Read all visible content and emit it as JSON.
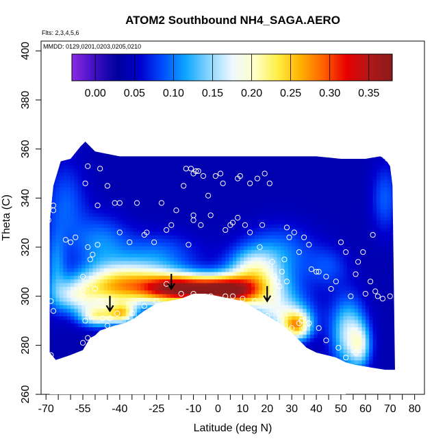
{
  "chart_data": {
    "type": "heatmap",
    "title": "ATOM2 Southbound NH4_SAGA.AERO",
    "flights_label": "Flts: 2,3,4,5,6",
    "dates_label": "MMDD: 0129,0201,0203,0205,0210",
    "xlabel": "Latitude (deg N)",
    "ylabel": "Theta (C)",
    "xlim": [
      -72,
      84
    ],
    "ylim": [
      260,
      404
    ],
    "x_ticks": [
      -70,
      -55,
      -40,
      -25,
      -10,
      0,
      10,
      20,
      30,
      40,
      50,
      60,
      70,
      80
    ],
    "x_tick_labels": [
      "-70",
      "-55",
      "-40",
      "-25",
      "-10",
      "0",
      "10",
      "20",
      "30",
      "40",
      "50",
      "60",
      "70",
      "80"
    ],
    "x_minor_ticks": [
      -65,
      -60,
      -50,
      -45,
      -35,
      -30,
      -20,
      -15,
      -5,
      5,
      15,
      25,
      35,
      45,
      55,
      65,
      75
    ],
    "y_ticks": [
      260,
      280,
      300,
      320,
      340,
      360,
      380,
      400
    ],
    "y_tick_labels": [
      "260",
      "280",
      "300",
      "320",
      "340",
      "360",
      "380",
      "400"
    ],
    "colorbar": {
      "min": -0.03,
      "max": 0.38,
      "ticks": [
        0.0,
        0.05,
        0.1,
        0.15,
        0.2,
        0.25,
        0.3,
        0.35
      ],
      "tick_labels": [
        "0.00",
        "0.05",
        "0.10",
        "0.15",
        "0.20",
        "0.25",
        "0.30",
        "0.35"
      ],
      "colors": [
        "#8a2be2",
        "#3d0fc4",
        "#00009a",
        "#0000d0",
        "#0050ff",
        "#0fa8ff",
        "#8ad5ff",
        "#eef8ff",
        "#ffffc8",
        "#ffee44",
        "#ffb000",
        "#ff6000",
        "#e80000",
        "#b01818",
        "#8b1a1a"
      ]
    },
    "domain_top": [
      [
        -68.5,
        330
      ],
      [
        -67,
        345
      ],
      [
        -64,
        355
      ],
      [
        -60,
        356
      ],
      [
        -56,
        361
      ],
      [
        -54,
        363
      ],
      [
        -50,
        359
      ],
      [
        -45,
        358
      ],
      [
        -40,
        357
      ],
      [
        -30,
        357
      ],
      [
        -20,
        357
      ],
      [
        -10,
        357
      ],
      [
        0,
        357
      ],
      [
        10,
        357
      ],
      [
        20,
        357
      ],
      [
        30,
        357
      ],
      [
        40,
        357
      ],
      [
        50,
        356
      ],
      [
        60,
        356
      ],
      [
        66,
        357
      ],
      [
        68,
        356
      ],
      [
        70,
        353
      ],
      [
        71,
        345
      ],
      [
        72,
        270
      ]
    ],
    "domain_bottom": [
      [
        -68.5,
        277
      ],
      [
        -66,
        274
      ],
      [
        -60,
        276
      ],
      [
        -55,
        278
      ],
      [
        -52,
        283
      ],
      [
        -50,
        284
      ],
      [
        -48,
        286
      ],
      [
        -45,
        287
      ],
      [
        -42,
        288
      ],
      [
        -38,
        289
      ],
      [
        -34,
        291
      ],
      [
        -30,
        294
      ],
      [
        -25,
        297
      ],
      [
        -20,
        298
      ],
      [
        -15,
        299
      ],
      [
        -10,
        301
      ],
      [
        -5,
        301
      ],
      [
        0,
        300
      ],
      [
        5,
        299
      ],
      [
        10,
        298
      ],
      [
        15,
        295
      ],
      [
        20,
        292
      ],
      [
        25,
        289
      ],
      [
        30,
        285
      ],
      [
        33,
        282
      ],
      [
        36,
        279
      ],
      [
        40,
        277
      ],
      [
        44,
        276
      ],
      [
        48,
        275
      ],
      [
        52,
        273
      ],
      [
        56,
        272
      ],
      [
        62,
        271
      ],
      [
        68,
        270
      ],
      [
        72,
        270
      ]
    ],
    "surface_fill_top": [
      [
        -68.5,
        277
      ],
      [
        -66,
        274
      ],
      [
        -60,
        276
      ],
      [
        -55,
        278
      ],
      [
        -52,
        283
      ],
      [
        -50,
        284
      ],
      [
        -48,
        286
      ],
      [
        -45,
        287
      ],
      [
        -42,
        288
      ],
      [
        -38,
        289
      ],
      [
        -34,
        291
      ],
      [
        -30,
        294
      ],
      [
        -25,
        297
      ],
      [
        -20,
        298
      ],
      [
        -15,
        299
      ],
      [
        -10,
        301
      ],
      [
        -5,
        301
      ],
      [
        0,
        300
      ],
      [
        5,
        299
      ],
      [
        10,
        298
      ],
      [
        15,
        295
      ],
      [
        20,
        292
      ],
      [
        25,
        289
      ],
      [
        30,
        285
      ],
      [
        33,
        282
      ],
      [
        36,
        279
      ],
      [
        40,
        277
      ],
      [
        44,
        276
      ],
      [
        48,
        275
      ],
      [
        52,
        273
      ]
    ],
    "field_blobs": [
      {
        "x": -62,
        "y": 338,
        "sx": 6,
        "sy": 12,
        "v": 0.09
      },
      {
        "x": -48,
        "y": 322,
        "sx": 8,
        "sy": 8,
        "v": 0.1
      },
      {
        "x": -25,
        "y": 318,
        "sx": 12,
        "sy": 6,
        "v": 0.09
      },
      {
        "x": 25,
        "y": 318,
        "sx": 10,
        "sy": 8,
        "v": 0.1
      },
      {
        "x": 14,
        "y": 312,
        "sx": 7,
        "sy": 6,
        "v": 0.13
      },
      {
        "x": -58,
        "y": 300,
        "sx": 7,
        "sy": 5,
        "v": 0.14
      },
      {
        "x": -44,
        "y": 304,
        "sx": 10,
        "sy": 6,
        "v": 0.17
      },
      {
        "x": -30,
        "y": 305,
        "sx": 12,
        "sy": 6,
        "v": 0.18
      },
      {
        "x": -18,
        "y": 303,
        "sx": 9,
        "sy": 4,
        "v": 0.22
      },
      {
        "x": -5,
        "y": 303,
        "sx": 10,
        "sy": 4,
        "v": 0.23
      },
      {
        "x": 5,
        "y": 302,
        "sx": 8,
        "sy": 4,
        "v": 0.22
      },
      {
        "x": 16,
        "y": 304,
        "sx": 10,
        "sy": 6,
        "v": 0.15
      },
      {
        "x": -49,
        "y": 292,
        "sx": 5,
        "sy": 3,
        "v": 0.18
      },
      {
        "x": -39,
        "y": 293,
        "sx": 4,
        "sy": 3,
        "v": 0.2
      },
      {
        "x": 25,
        "y": 293,
        "sx": 9,
        "sy": 6,
        "v": 0.15
      },
      {
        "x": 32,
        "y": 288,
        "sx": 4,
        "sy": 4,
        "v": 0.22
      },
      {
        "x": 53,
        "y": 285,
        "sx": 5,
        "sy": 10,
        "v": 0.16
      },
      {
        "x": 58,
        "y": 280,
        "sx": 3,
        "sy": 6,
        "v": 0.13
      },
      {
        "x": 45,
        "y": 312,
        "sx": 6,
        "sy": 6,
        "v": 0.08
      },
      {
        "x": 68,
        "y": 340,
        "sx": 4,
        "sy": 10,
        "v": 0.09
      },
      {
        "x": -66,
        "y": 312,
        "sx": 3,
        "sy": 10,
        "v": 0.1
      }
    ],
    "field_base": 0.04,
    "obs_points": [
      [
        -69,
        331
      ],
      [
        -67,
        337
      ],
      [
        -67,
        335
      ],
      [
        -68,
        298
      ],
      [
        -67,
        294
      ],
      [
        -68,
        276
      ],
      [
        -62,
        323
      ],
      [
        -60,
        322
      ],
      [
        -58,
        324
      ],
      [
        -55,
        300
      ],
      [
        -55,
        303
      ],
      [
        -55,
        308
      ],
      [
        -53,
        320
      ],
      [
        -52,
        315
      ],
      [
        -51,
        317
      ],
      [
        -49,
        321
      ],
      [
        -50,
        303
      ],
      [
        -48,
        298
      ],
      [
        -47,
        291
      ],
      [
        -45,
        288
      ],
      [
        -54,
        290
      ],
      [
        -55,
        281
      ],
      [
        -53,
        283
      ],
      [
        -54,
        346
      ],
      [
        -53,
        353
      ],
      [
        -48,
        352
      ],
      [
        -49,
        337
      ],
      [
        -45,
        345
      ],
      [
        -42,
        338
      ],
      [
        -40,
        338
      ],
      [
        -40,
        326
      ],
      [
        -36,
        322
      ],
      [
        -33,
        338
      ],
      [
        -29,
        326
      ],
      [
        -26,
        322
      ],
      [
        -23,
        338
      ],
      [
        -21,
        327
      ],
      [
        -19,
        329
      ],
      [
        -17,
        335
      ],
      [
        -14,
        345
      ],
      [
        -13,
        352
      ],
      [
        -11,
        352
      ],
      [
        -10,
        350
      ],
      [
        -9,
        351
      ],
      [
        -8,
        351
      ],
      [
        -10,
        333
      ],
      [
        -10,
        331
      ],
      [
        -7,
        329
      ],
      [
        -6,
        349
      ],
      [
        -3,
        333
      ],
      [
        -1,
        349
      ],
      [
        1,
        350
      ],
      [
        2,
        346
      ],
      [
        3,
        327
      ],
      [
        5,
        329
      ],
      [
        6,
        330
      ],
      [
        8,
        348
      ],
      [
        9,
        349
      ],
      [
        11,
        329
      ],
      [
        13,
        326
      ],
      [
        13,
        346
      ],
      [
        16,
        348
      ],
      [
        17,
        320
      ],
      [
        18,
        329
      ],
      [
        19,
        350
      ],
      [
        21,
        346
      ],
      [
        22,
        314
      ],
      [
        23,
        308
      ],
      [
        24,
        306
      ],
      [
        25,
        304
      ],
      [
        26,
        310
      ],
      [
        27,
        315
      ],
      [
        28,
        328
      ],
      [
        29,
        324
      ],
      [
        31,
        326
      ],
      [
        33,
        318
      ],
      [
        35,
        324
      ],
      [
        37,
        321
      ],
      [
        38,
        311
      ],
      [
        40,
        310
      ],
      [
        41,
        310
      ],
      [
        44,
        308
      ],
      [
        46,
        303
      ],
      [
        48,
        306
      ],
      [
        50,
        322
      ],
      [
        52,
        318
      ],
      [
        54,
        300
      ],
      [
        56,
        309
      ],
      [
        57,
        314
      ],
      [
        60,
        301
      ],
      [
        62,
        306
      ],
      [
        64,
        302
      ],
      [
        65,
        300
      ],
      [
        67,
        299
      ],
      [
        68,
        357
      ],
      [
        69,
        356
      ],
      [
        70,
        300
      ],
      [
        52,
        275
      ],
      [
        56,
        277
      ],
      [
        49,
        279
      ],
      [
        44,
        282
      ],
      [
        41,
        287
      ],
      [
        37,
        289
      ],
      [
        35,
        287
      ],
      [
        33,
        289
      ],
      [
        30,
        287
      ],
      [
        25,
        293
      ],
      [
        20,
        292
      ],
      [
        15,
        298
      ],
      [
        10,
        299
      ],
      [
        6,
        300
      ],
      [
        3,
        300
      ],
      [
        -3,
        300
      ],
      [
        -10,
        301
      ],
      [
        -15,
        301
      ],
      [
        -25,
        298
      ],
      [
        -30,
        296
      ],
      [
        -35,
        293
      ],
      [
        -41,
        293
      ],
      [
        -44,
        291
      ],
      [
        -30,
        325
      ],
      [
        -4,
        341
      ],
      [
        34,
        290
      ],
      [
        28,
        306
      ],
      [
        59,
        318
      ],
      [
        63,
        325
      ],
      [
        -21,
        305
      ],
      [
        -12,
        321
      ],
      [
        8,
        332
      ]
    ],
    "arrows": [
      [
        -44,
        294
      ],
      [
        -19,
        303
      ],
      [
        20,
        298
      ]
    ]
  }
}
